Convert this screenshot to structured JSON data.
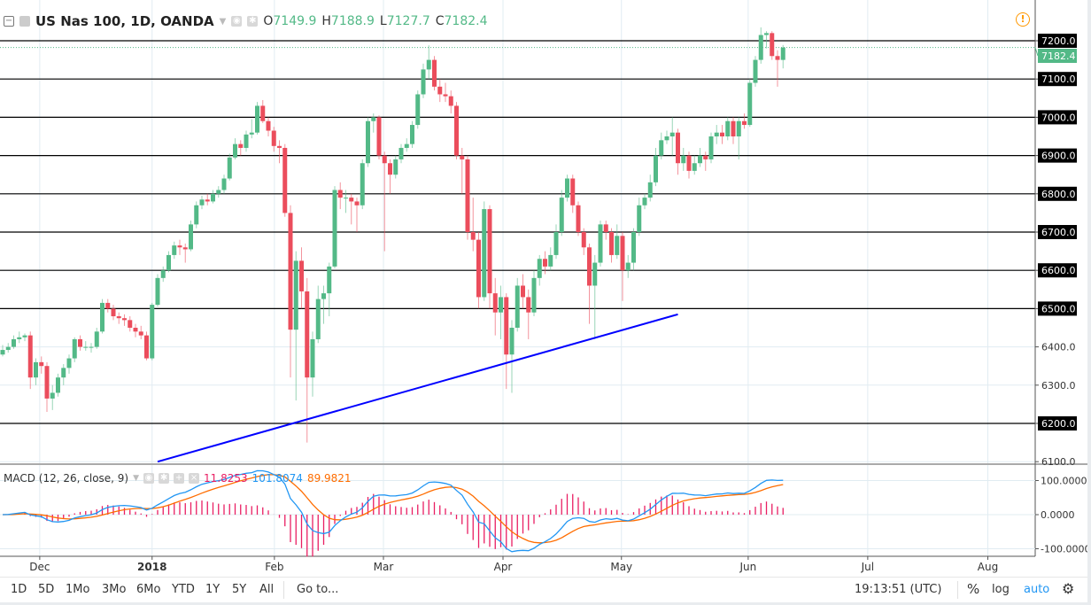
{
  "header": {
    "collapse_icon": "minus-square-icon",
    "symbol": "US Nas 100, 1D, OANDA",
    "open_label": "O",
    "open": "7149.9",
    "high_label": "H",
    "high": "7188.9",
    "low_label": "L",
    "low": "7127.7",
    "close_label": "C",
    "close": "7182.4"
  },
  "macd_legend": {
    "title": "MACD (12, 26, close, 9)",
    "histogram": "11.8253",
    "macd": "101.8074",
    "signal": "89.9821"
  },
  "colors": {
    "up": "#53b987",
    "down": "#eb4d5c",
    "trendline": "#0000ff",
    "macd": "#2196f3",
    "signal": "#ff6d00",
    "histogram": "#e91e63",
    "accent": "#2196f3",
    "warning": "#ff9800"
  },
  "chart_data": {
    "type": "candlestick",
    "price_axis": {
      "range": [
        6080,
        7240
      ],
      "ticks": [
        "7200.0",
        "7100.0",
        "7000.0",
        "6900.0",
        "6800.0",
        "6700.0",
        "6600.0",
        "6500.0",
        "6400.0",
        "6300.0",
        "6200.0",
        "6100.0"
      ],
      "last_price": "7182.4"
    },
    "horizontal_lines": [
      7200,
      7100,
      7000,
      6900,
      6800,
      6700,
      6600,
      6500,
      6200
    ],
    "trendline": {
      "from": {
        "bar": 28,
        "price": 6100
      },
      "to": {
        "bar": 122,
        "price": 6485
      }
    },
    "time_ticks": [
      {
        "label": "Dec",
        "bar": 6.7
      },
      {
        "label": "2018",
        "bar": 27,
        "bold": true
      },
      {
        "label": "Feb",
        "bar": 49.1
      },
      {
        "label": "Mar",
        "bar": 68.8
      },
      {
        "label": "Apr",
        "bar": 90.4
      },
      {
        "label": "May",
        "bar": 111.8
      },
      {
        "label": "Jun",
        "bar": 134.7
      },
      {
        "label": "Jul",
        "bar": 156.3
      },
      {
        "label": "Aug",
        "bar": 178
      }
    ],
    "candles_ohlc": [
      [
        6380,
        6405,
        6375,
        6392
      ],
      [
        6392,
        6410,
        6385,
        6400
      ],
      [
        6400,
        6430,
        6395,
        6420
      ],
      [
        6420,
        6440,
        6410,
        6425
      ],
      [
        6425,
        6435,
        6415,
        6430
      ],
      [
        6430,
        6440,
        6290,
        6320
      ],
      [
        6320,
        6370,
        6300,
        6360
      ],
      [
        6360,
        6375,
        6330,
        6350
      ],
      [
        6350,
        6360,
        6230,
        6265
      ],
      [
        6265,
        6300,
        6235,
        6280
      ],
      [
        6280,
        6330,
        6270,
        6320
      ],
      [
        6320,
        6355,
        6300,
        6345
      ],
      [
        6345,
        6380,
        6330,
        6370
      ],
      [
        6370,
        6425,
        6360,
        6420
      ],
      [
        6420,
        6430,
        6390,
        6400
      ],
      [
        6400,
        6415,
        6390,
        6400
      ],
      [
        6400,
        6410,
        6385,
        6400
      ],
      [
        6400,
        6450,
        6395,
        6440
      ],
      [
        6440,
        6525,
        6435,
        6515
      ],
      [
        6515,
        6525,
        6490,
        6500
      ],
      [
        6500,
        6510,
        6470,
        6480
      ],
      [
        6480,
        6490,
        6460,
        6475
      ],
      [
        6475,
        6485,
        6455,
        6470
      ],
      [
        6470,
        6480,
        6440,
        6450
      ],
      [
        6450,
        6460,
        6425,
        6440
      ],
      [
        6440,
        6455,
        6420,
        6430
      ],
      [
        6430,
        6440,
        6365,
        6370
      ],
      [
        6370,
        6515,
        6365,
        6510
      ],
      [
        6510,
        6590,
        6505,
        6580
      ],
      [
        6580,
        6610,
        6570,
        6600
      ],
      [
        6600,
        6650,
        6595,
        6640
      ],
      [
        6640,
        6675,
        6630,
        6665
      ],
      [
        6665,
        6680,
        6640,
        6660
      ],
      [
        6660,
        6670,
        6620,
        6655
      ],
      [
        6655,
        6730,
        6650,
        6720
      ],
      [
        6720,
        6780,
        6710,
        6770
      ],
      [
        6770,
        6795,
        6760,
        6785
      ],
      [
        6785,
        6800,
        6770,
        6780
      ],
      [
        6780,
        6810,
        6775,
        6800
      ],
      [
        6800,
        6820,
        6790,
        6810
      ],
      [
        6810,
        6850,
        6800,
        6840
      ],
      [
        6840,
        6905,
        6835,
        6895
      ],
      [
        6895,
        6945,
        6890,
        6930
      ],
      [
        6930,
        6940,
        6900,
        6920
      ],
      [
        6920,
        6965,
        6910,
        6955
      ],
      [
        6955,
        6995,
        6945,
        6960
      ],
      [
        6960,
        7040,
        6955,
        7030
      ],
      [
        7030,
        7045,
        6985,
        6990
      ],
      [
        6990,
        7000,
        6950,
        6965
      ],
      [
        6965,
        6975,
        6910,
        6925
      ],
      [
        6925,
        6940,
        6880,
        6920
      ],
      [
        6920,
        6930,
        6740,
        6750
      ],
      [
        6750,
        6770,
        6320,
        6445
      ],
      [
        6445,
        6650,
        6260,
        6625
      ],
      [
        6625,
        6660,
        6500,
        6545
      ],
      [
        6545,
        6580,
        6150,
        6320
      ],
      [
        6320,
        6440,
        6270,
        6420
      ],
      [
        6420,
        6560,
        6410,
        6525
      ],
      [
        6525,
        6560,
        6460,
        6540
      ],
      [
        6540,
        6620,
        6480,
        6610
      ],
      [
        6610,
        6820,
        6605,
        6810
      ],
      [
        6810,
        6830,
        6760,
        6790
      ],
      [
        6790,
        6810,
        6750,
        6790
      ],
      [
        6790,
        6800,
        6720,
        6780
      ],
      [
        6780,
        6790,
        6700,
        6770
      ],
      [
        6770,
        6890,
        6760,
        6880
      ],
      [
        6880,
        7000,
        6870,
        6990
      ],
      [
        6990,
        7010,
        6960,
        7000
      ],
      [
        7000,
        7005,
        6890,
        6900
      ],
      [
        6900,
        6910,
        6650,
        6880
      ],
      [
        6880,
        6890,
        6800,
        6850
      ],
      [
        6850,
        6900,
        6840,
        6890
      ],
      [
        6890,
        6930,
        6880,
        6920
      ],
      [
        6920,
        6945,
        6910,
        6930
      ],
      [
        6930,
        6990,
        6920,
        6980
      ],
      [
        6980,
        7070,
        6970,
        7060
      ],
      [
        7060,
        7140,
        7050,
        7125
      ],
      [
        7125,
        7188,
        7100,
        7150
      ],
      [
        7150,
        7160,
        7070,
        7080
      ],
      [
        7080,
        7100,
        7040,
        7060
      ],
      [
        7060,
        7090,
        7040,
        7055
      ],
      [
        7055,
        7070,
        7010,
        7030
      ],
      [
        7030,
        7040,
        6890,
        6900
      ],
      [
        6900,
        6920,
        6800,
        6890
      ],
      [
        6890,
        6900,
        6680,
        6700
      ],
      [
        6700,
        6790,
        6650,
        6680
      ],
      [
        6680,
        6700,
        6500,
        6530
      ],
      [
        6530,
        6780,
        6520,
        6760
      ],
      [
        6760,
        6770,
        6500,
        6540
      ],
      [
        6540,
        6580,
        6430,
        6490
      ],
      [
        6490,
        6560,
        6420,
        6530
      ],
      [
        6530,
        6540,
        6290,
        6380
      ],
      [
        6380,
        6470,
        6280,
        6450
      ],
      [
        6450,
        6580,
        6440,
        6560
      ],
      [
        6560,
        6590,
        6500,
        6530
      ],
      [
        6530,
        6550,
        6420,
        6490
      ],
      [
        6490,
        6600,
        6480,
        6580
      ],
      [
        6580,
        6640,
        6560,
        6630
      ],
      [
        6630,
        6650,
        6590,
        6610
      ],
      [
        6610,
        6660,
        6600,
        6640
      ],
      [
        6640,
        6720,
        6630,
        6700
      ],
      [
        6700,
        6810,
        6690,
        6790
      ],
      [
        6790,
        6850,
        6780,
        6840
      ],
      [
        6840,
        6850,
        6750,
        6770
      ],
      [
        6770,
        6780,
        6690,
        6700
      ],
      [
        6700,
        6710,
        6640,
        6660
      ],
      [
        6660,
        6670,
        6460,
        6560
      ],
      [
        6560,
        6640,
        6420,
        6620
      ],
      [
        6620,
        6730,
        6610,
        6720
      ],
      [
        6720,
        6730,
        6680,
        6700
      ],
      [
        6700,
        6710,
        6620,
        6640
      ],
      [
        6640,
        6720,
        6630,
        6690
      ],
      [
        6690,
        6700,
        6520,
        6600
      ],
      [
        6600,
        6640,
        6580,
        6620
      ],
      [
        6620,
        6710,
        6600,
        6700
      ],
      [
        6700,
        6790,
        6690,
        6770
      ],
      [
        6770,
        6800,
        6760,
        6790
      ],
      [
        6790,
        6850,
        6780,
        6830
      ],
      [
        6830,
        6920,
        6820,
        6900
      ],
      [
        6900,
        6960,
        6890,
        6940
      ],
      [
        6940,
        6965,
        6930,
        6950
      ],
      [
        6950,
        7000,
        6900,
        6960
      ],
      [
        6960,
        6970,
        6850,
        6880
      ],
      [
        6880,
        6920,
        6860,
        6900
      ],
      [
        6900,
        6910,
        6840,
        6860
      ],
      [
        6860,
        6900,
        6850,
        6880
      ],
      [
        6880,
        6920,
        6870,
        6900
      ],
      [
        6900,
        6910,
        6860,
        6890
      ],
      [
        6890,
        6960,
        6880,
        6950
      ],
      [
        6950,
        6980,
        6930,
        6960
      ],
      [
        6960,
        6980,
        6930,
        6950
      ],
      [
        6950,
        7000,
        6940,
        6990
      ],
      [
        6990,
        7000,
        6930,
        6950
      ],
      [
        6950,
        7000,
        6890,
        6990
      ],
      [
        6990,
        7010,
        6970,
        6980
      ],
      [
        6980,
        7100,
        6975,
        7090
      ],
      [
        7090,
        7160,
        7080,
        7150
      ],
      [
        7150,
        7235,
        7140,
        7215
      ],
      [
        7215,
        7225,
        7180,
        7220
      ],
      [
        7220,
        7225,
        7150,
        7160
      ],
      [
        7160,
        7175,
        7080,
        7150
      ],
      [
        7149.9,
        7188.9,
        7127.7,
        7182.4
      ]
    ],
    "macd": {
      "fast": 12,
      "slow": 26,
      "source": "close",
      "signal": 9,
      "axis_ticks": [
        "100.0000",
        "0.0000",
        "-100.0000"
      ],
      "range": [
        -110,
        145
      ]
    }
  },
  "toolbar": {
    "ranges": [
      "1D",
      "5D",
      "1Mo",
      "3Mo",
      "6Mo",
      "YTD",
      "1Y",
      "5Y",
      "All"
    ],
    "goto": "Go to...",
    "clock": "19:13:51 (UTC)",
    "percent": "%",
    "log": "log",
    "auto": "auto",
    "settings_icon": "gear-icon"
  }
}
